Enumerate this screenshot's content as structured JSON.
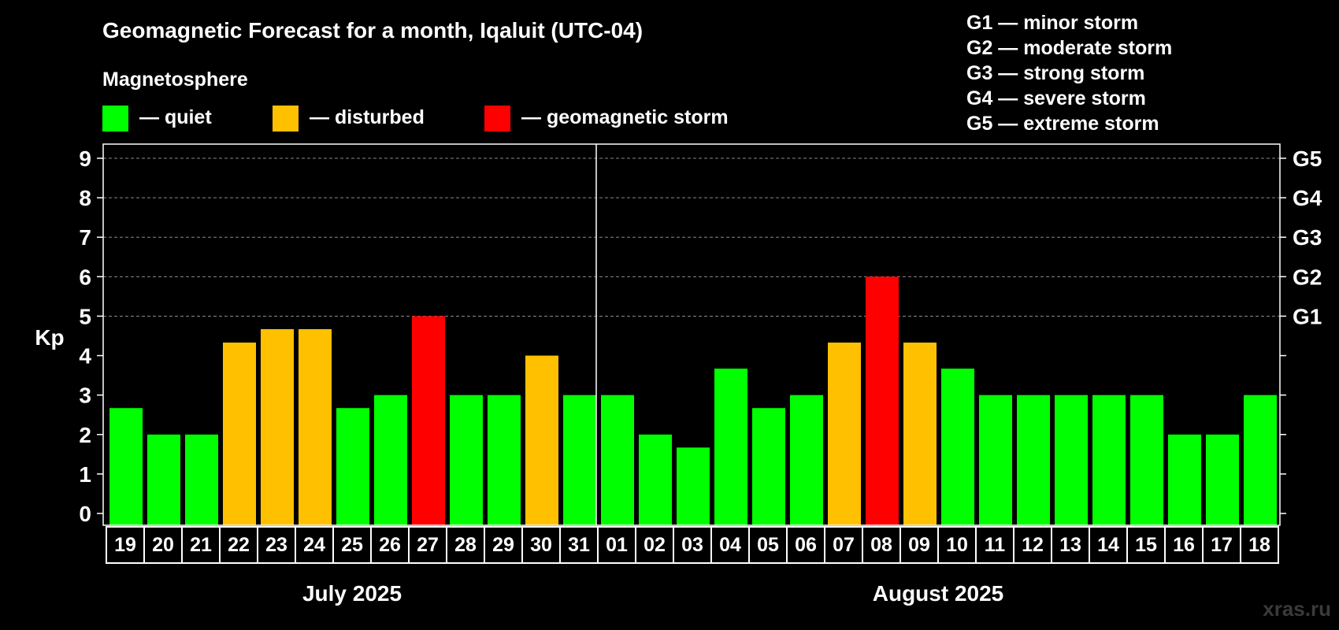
{
  "chart_data": {
    "type": "bar",
    "title": "Geomagnetic Forecast for a month, Iqaluit (UTC-04)",
    "legend": {
      "heading": "Magnetosphere",
      "items": [
        {
          "label": "— quiet",
          "color": "#00ff00"
        },
        {
          "label": "— disturbed",
          "color": "#ffc000"
        },
        {
          "label": "— geomagnetic storm",
          "color": "#ff0000"
        }
      ]
    },
    "storm_scale": [
      "G1 — minor storm",
      "G2 — moderate storm",
      "G3 — strong storm",
      "G4 — severe storm",
      "G5 — extreme storm"
    ],
    "ylabel": "Kp",
    "ylim": [
      0,
      9
    ],
    "y_ticks": [
      "0",
      "1",
      "2",
      "3",
      "4",
      "5",
      "6",
      "7",
      "8",
      "9"
    ],
    "right_ticks": [
      {
        "kp": 5,
        "label": "G1"
      },
      {
        "kp": 6,
        "label": "G2"
      },
      {
        "kp": 7,
        "label": "G3"
      },
      {
        "kp": 8,
        "label": "G4"
      },
      {
        "kp": 9,
        "label": "G5"
      }
    ],
    "grid": true,
    "months": [
      {
        "label": "July 2025",
        "days": 13
      },
      {
        "label": "August 2025",
        "days": 18
      }
    ],
    "categories": [
      "19",
      "20",
      "21",
      "22",
      "23",
      "24",
      "25",
      "26",
      "27",
      "28",
      "29",
      "30",
      "31",
      "01",
      "02",
      "03",
      "04",
      "05",
      "06",
      "07",
      "08",
      "09",
      "10",
      "11",
      "12",
      "13",
      "14",
      "15",
      "16",
      "17",
      "18"
    ],
    "values": [
      2.67,
      2,
      2,
      4.33,
      4.67,
      4.67,
      2.67,
      3,
      5,
      3,
      3,
      4,
      3,
      3,
      2,
      1.67,
      3.67,
      2.67,
      3,
      4.33,
      6,
      4.33,
      3.67,
      3,
      3,
      3,
      3,
      3,
      2,
      2,
      3
    ],
    "levels": [
      "quiet",
      "quiet",
      "quiet",
      "disturbed",
      "disturbed",
      "disturbed",
      "quiet",
      "quiet",
      "storm",
      "quiet",
      "quiet",
      "disturbed",
      "quiet",
      "quiet",
      "quiet",
      "quiet",
      "quiet",
      "quiet",
      "quiet",
      "disturbed",
      "storm",
      "disturbed",
      "quiet",
      "quiet",
      "quiet",
      "quiet",
      "quiet",
      "quiet",
      "quiet",
      "quiet",
      "quiet"
    ],
    "level_colors": {
      "quiet": "#00ff00",
      "disturbed": "#ffc000",
      "storm": "#ff0000"
    }
  },
  "watermark": "xras.ru"
}
